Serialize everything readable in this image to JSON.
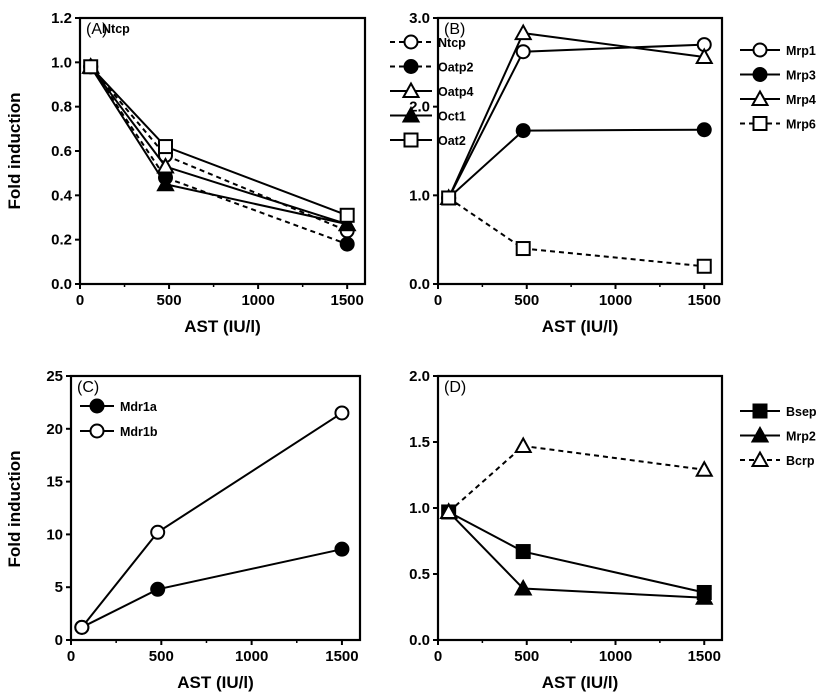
{
  "chart_data": [
    {
      "type": "line",
      "panel_label": "(A)",
      "annotation": "Ntcp",
      "xlabel": "AST (IU/l)",
      "ylabel": "Fold induction",
      "xlim": [
        0,
        1600
      ],
      "ylim": [
        0,
        1.2
      ],
      "xticks": [
        "0",
        "500",
        "1000",
        "1500"
      ],
      "yticks": [
        "0.0",
        "0.2",
        "0.4",
        "0.6",
        "0.8",
        "1.0",
        "1.2"
      ],
      "x": [
        60,
        480,
        1500
      ],
      "legend_position": "top-right",
      "series": [
        {
          "name": "Ntcp",
          "values": [
            0.98,
            0.58,
            0.24
          ],
          "marker": "circle-open",
          "dash": "dashed"
        },
        {
          "name": "Oatp2",
          "values": [
            0.98,
            0.48,
            0.18
          ],
          "marker": "circle-filled",
          "dash": "dashed"
        },
        {
          "name": "Oatp4",
          "values": [
            0.98,
            0.53,
            0.27
          ],
          "marker": "triangle-open",
          "dash": "solid"
        },
        {
          "name": "Oct1",
          "values": [
            0.98,
            0.45,
            0.27
          ],
          "marker": "triangle-filled",
          "dash": "solid"
        },
        {
          "name": "Oat2",
          "values": [
            0.98,
            0.62,
            0.31
          ],
          "marker": "square-open",
          "dash": "solid"
        }
      ]
    },
    {
      "type": "line",
      "panel_label": "(B)",
      "xlabel": "AST (IU/l)",
      "ylabel": "",
      "xlim": [
        0,
        1600
      ],
      "ylim": [
        0,
        3.0
      ],
      "xticks": [
        "0",
        "500",
        "1000",
        "1500"
      ],
      "yticks": [
        "0.0",
        "1.0",
        "2.0",
        "3.0"
      ],
      "x": [
        60,
        480,
        1500
      ],
      "legend_position": "outside-right",
      "series": [
        {
          "name": "Mrp1",
          "values": [
            0.97,
            2.62,
            2.7
          ],
          "marker": "circle-open",
          "dash": "solid"
        },
        {
          "name": "Mrp3",
          "values": [
            0.97,
            1.73,
            1.74
          ],
          "marker": "circle-filled",
          "dash": "solid"
        },
        {
          "name": "Mrp4",
          "values": [
            0.97,
            2.83,
            2.56
          ],
          "marker": "triangle-open",
          "dash": "solid"
        },
        {
          "name": "Mrp6",
          "values": [
            0.97,
            0.4,
            0.2
          ],
          "marker": "square-open",
          "dash": "dashed"
        }
      ]
    },
    {
      "type": "line",
      "panel_label": "(C)",
      "xlabel": "AST (IU/l)",
      "ylabel": "Fold induction",
      "xlim": [
        0,
        1600
      ],
      "ylim": [
        0,
        25
      ],
      "xticks": [
        "0",
        "500",
        "1000",
        "1500"
      ],
      "yticks": [
        "0",
        "5",
        "10",
        "15",
        "20",
        "25"
      ],
      "x": [
        60,
        480,
        1500
      ],
      "legend_position": "top-left",
      "series": [
        {
          "name": "Mdr1a",
          "values": [
            1.2,
            4.8,
            8.6
          ],
          "marker": "circle-filled",
          "dash": "solid"
        },
        {
          "name": "Mdr1b",
          "values": [
            1.2,
            10.2,
            21.5
          ],
          "marker": "circle-open",
          "dash": "solid"
        }
      ]
    },
    {
      "type": "line",
      "panel_label": "(D)",
      "xlabel": "AST (IU/l)",
      "ylabel": "",
      "xlim": [
        0,
        1600
      ],
      "ylim": [
        0,
        2.0
      ],
      "xticks": [
        "0",
        "500",
        "1000",
        "1500"
      ],
      "yticks": [
        "0.0",
        "0.5",
        "1.0",
        "1.5",
        "2.0"
      ],
      "x": [
        60,
        480,
        1500
      ],
      "legend_position": "outside-right",
      "series": [
        {
          "name": "Bsep",
          "values": [
            0.97,
            0.67,
            0.36
          ],
          "marker": "square-filled",
          "dash": "solid"
        },
        {
          "name": "Mrp2",
          "values": [
            0.97,
            0.39,
            0.32
          ],
          "marker": "triangle-filled",
          "dash": "solid"
        },
        {
          "name": "Bcrp",
          "values": [
            0.97,
            1.47,
            1.29
          ],
          "marker": "triangle-open",
          "dash": "dashed"
        }
      ]
    }
  ]
}
